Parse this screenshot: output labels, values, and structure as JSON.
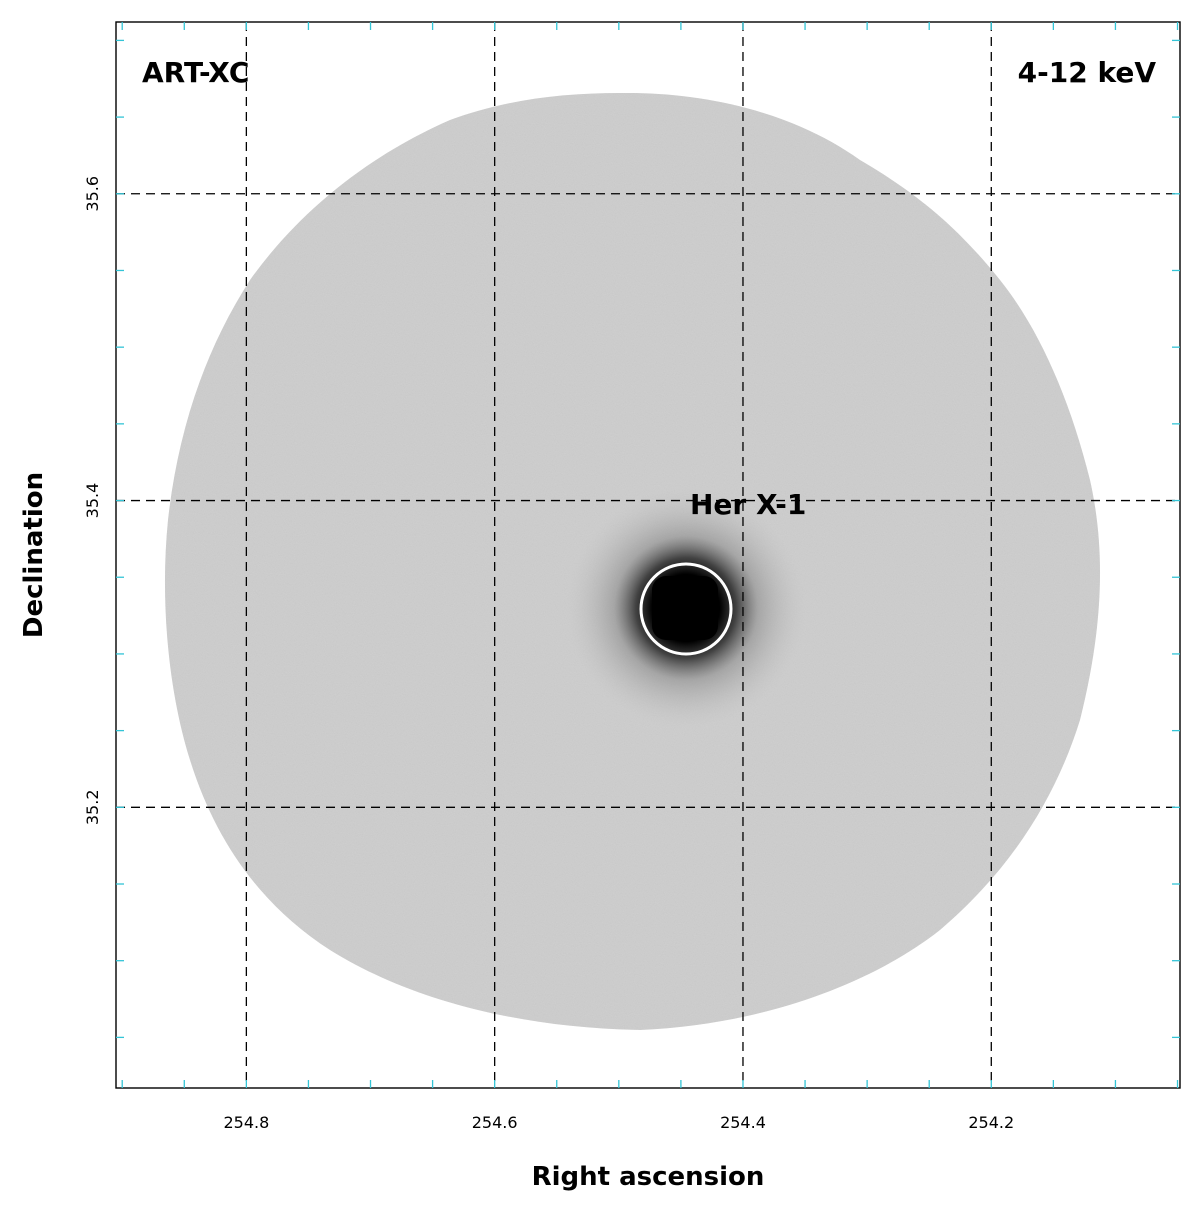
{
  "image": {
    "instrument_label": "ART-XC",
    "energy_band_label": "4-12 keV",
    "source_label": "Her X-1",
    "x_axis_title": "Right ascension",
    "y_axis_title": "Declination",
    "ra_range": [
      254.905,
      254.048
    ],
    "dec_range": [
      35.017,
      35.712
    ],
    "source_position": {
      "ra": 254.457,
      "dec": 35.342
    },
    "grid": {
      "ra_lines": [
        254.8,
        254.6,
        254.4,
        254.2
      ],
      "dec_lines": [
        35.6,
        35.4,
        35.2
      ],
      "style": "dashed"
    },
    "x_ticks": [
      {
        "value": 254.8,
        "label": "254.8"
      },
      {
        "value": 254.6,
        "label": "254.6"
      },
      {
        "value": 254.4,
        "label": "254.4"
      },
      {
        "value": 254.2,
        "label": "254.2"
      }
    ],
    "y_ticks": [
      {
        "value": 35.6,
        "label": "35.6"
      },
      {
        "value": 35.4,
        "label": "35.4"
      },
      {
        "value": 35.2,
        "label": "35.2"
      }
    ],
    "colors": {
      "field_of_view": "#cfcfcf",
      "source": "#050505",
      "region_circle": "#ffffff",
      "minor_ticks": "#33c4d6",
      "grid": "#000000"
    }
  }
}
